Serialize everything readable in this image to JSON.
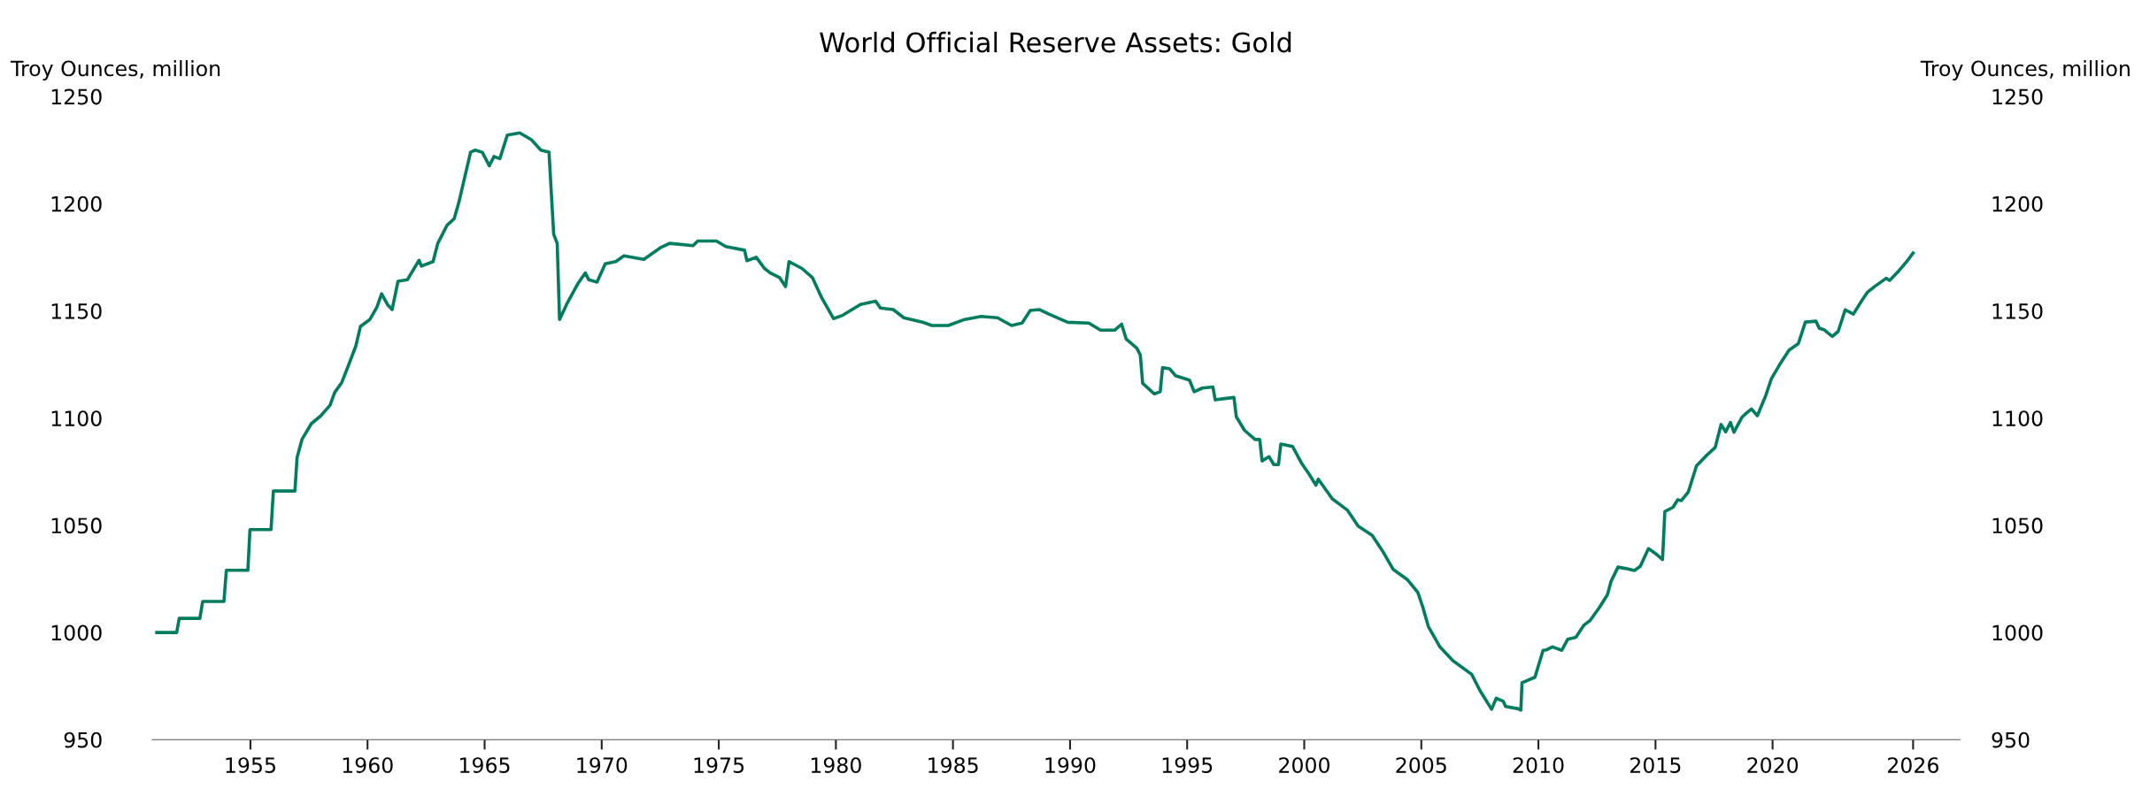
{
  "chart_data": {
    "type": "line",
    "title": "World Official Reserve Assets: Gold",
    "ylabel": "Troy Ounces, million",
    "y2label": "Troy Ounces, million",
    "xlim": [
      1950.8,
      2028
    ],
    "xticks": [
      1955,
      1960,
      1965,
      1970,
      1975,
      1980,
      1985,
      1990,
      1995,
      2000,
      2005,
      2010,
      2015,
      2020,
      2026
    ],
    "ylim": [
      950,
      1250
    ],
    "yticks": [
      950,
      1000,
      1050,
      1100,
      1150,
      1200,
      1250
    ],
    "y2lim": [
      950,
      1250
    ],
    "y2ticks": [
      950,
      1000,
      1050,
      1100,
      1150,
      1200,
      1250
    ],
    "grid": false,
    "marker": "none",
    "line_style": "solid",
    "series": [
      {
        "color": "#007d5e",
        "x": [
          1951.0,
          1951.85,
          1951.96,
          1952.84,
          1952.96,
          1953.87,
          1953.97,
          1954.89,
          1954.98,
          1955.88,
          1955.98,
          1956.9,
          1956.99,
          1957.2,
          1957.6,
          1958.0,
          1958.4,
          1958.6,
          1958.9,
          1959.2,
          1959.5,
          1959.7,
          1960.1,
          1960.4,
          1960.6,
          1960.85,
          1961.05,
          1961.3,
          1961.7,
          1962.2,
          1962.3,
          1962.8,
          1963.0,
          1963.4,
          1963.7,
          1963.9,
          1964.1,
          1964.4,
          1964.6,
          1964.9,
          1965.2,
          1965.4,
          1965.65,
          1965.97,
          1966.5,
          1967.0,
          1967.4,
          1967.75,
          1967.95,
          1968.1,
          1968.2,
          1968.5,
          1969.0,
          1969.3,
          1969.45,
          1969.8,
          1970.15,
          1970.6,
          1970.95,
          1971.8,
          1972.5,
          1972.9,
          1973.9,
          1974.1,
          1974.9,
          1975.3,
          1976.1,
          1976.2,
          1976.6,
          1976.95,
          1977.2,
          1977.6,
          1977.85,
          1978.0,
          1978.55,
          1979.0,
          1979.4,
          1979.9,
          1980.3,
          1981.05,
          1981.7,
          1981.9,
          1982.45,
          1982.9,
          1983.7,
          1984.1,
          1984.8,
          1985.5,
          1986.2,
          1986.9,
          1987.5,
          1987.95,
          1988.3,
          1988.7,
          1989.1,
          1989.9,
          1990.8,
          1991.3,
          1991.9,
          1992.2,
          1992.4,
          1992.85,
          1993.0,
          1993.1,
          1993.6,
          1993.85,
          1993.95,
          1994.25,
          1994.5,
          1995.1,
          1995.3,
          1995.65,
          1996.1,
          1996.2,
          1996.6,
          1997.0,
          1997.1,
          1997.45,
          1997.9,
          1998.1,
          1998.2,
          1998.5,
          1998.7,
          1998.9,
          1999.0,
          1999.5,
          1999.9,
          2000.2,
          2000.5,
          2000.6,
          2001.2,
          2001.85,
          2002.3,
          2002.9,
          2003.35,
          2003.8,
          2004.4,
          2004.85,
          2005.05,
          2005.3,
          2005.8,
          2006.35,
          2007.15,
          2007.5,
          2008.0,
          2008.2,
          2008.5,
          2008.6,
          2009.15,
          2009.25,
          2009.3,
          2009.85,
          2010.2,
          2010.35,
          2010.6,
          2011.0,
          2011.25,
          2011.6,
          2011.95,
          2012.2,
          2012.6,
          2012.95,
          2013.1,
          2013.4,
          2013.7,
          2014.1,
          2014.35,
          2014.7,
          2014.98,
          2015.3,
          2015.4,
          2015.75,
          2015.95,
          2016.1,
          2016.4,
          2016.75,
          2017.2,
          2017.55,
          2017.8,
          2018.0,
          2018.2,
          2018.35,
          2018.7,
          2018.9,
          2019.1,
          2019.35,
          2019.7,
          2019.95,
          2020.3,
          2020.7,
          2021.1,
          2021.4,
          2021.85,
          2022.0,
          2022.2,
          2022.55,
          2022.8,
          2023.1,
          2023.45,
          2023.8,
          2024.05,
          2024.4,
          2024.85,
          2025.0,
          2025.4,
          2025.75,
          2026.0
        ],
        "values": [
          1000,
          1000,
          1006.6,
          1006.6,
          1014.5,
          1014.5,
          1029,
          1029,
          1048,
          1048,
          1066,
          1066,
          1081.5,
          1090,
          1097.4,
          1101,
          1106,
          1112,
          1116.6,
          1125,
          1133.6,
          1142.8,
          1146,
          1151.7,
          1158,
          1153,
          1150.6,
          1163.8,
          1164.5,
          1173.6,
          1170.9,
          1173,
          1181.5,
          1190,
          1193,
          1200.6,
          1210,
          1224,
          1225,
          1224,
          1217.7,
          1222,
          1221,
          1232,
          1233,
          1229.8,
          1225,
          1224,
          1185.7,
          1181.5,
          1146,
          1153,
          1163,
          1167.7,
          1164.5,
          1163.4,
          1172,
          1173,
          1175.7,
          1174,
          1179.4,
          1181.5,
          1180.4,
          1182.6,
          1182.6,
          1180,
          1178.3,
          1173.4,
          1175,
          1169.8,
          1167.7,
          1165.5,
          1161.3,
          1173,
          1169.8,
          1165.5,
          1156,
          1146.4,
          1148,
          1153,
          1154.5,
          1151.3,
          1150.6,
          1146.8,
          1144.7,
          1143.2,
          1143.2,
          1146,
          1147.4,
          1146.8,
          1143.2,
          1144.3,
          1150.2,
          1150.6,
          1148.5,
          1144.7,
          1144.3,
          1141,
          1141,
          1143.8,
          1136.8,
          1132.6,
          1129.4,
          1116.2,
          1111.3,
          1112.3,
          1123.6,
          1123,
          1119.8,
          1117.7,
          1112.3,
          1114,
          1114.5,
          1108.5,
          1109.1,
          1109.6,
          1100.6,
          1094.3,
          1090,
          1090,
          1080,
          1082,
          1078.3,
          1078.3,
          1087.9,
          1086.8,
          1078.7,
          1074,
          1068.7,
          1071.5,
          1062.3,
          1057,
          1049.6,
          1045.3,
          1037.9,
          1029.4,
          1024.7,
          1018.7,
          1012.3,
          1002.8,
          993.2,
          986.8,
          980.5,
          973,
          964.2,
          969.3,
          967.9,
          965.5,
          964.4,
          963.8,
          976.6,
          979.1,
          991.7,
          991.9,
          993.3,
          991.7,
          996.8,
          997.8,
          1003.5,
          1005.5,
          1011.6,
          1017.7,
          1023.8,
          1030.5,
          1029.9,
          1028.9,
          1030.9,
          1039.1,
          1037,
          1034,
          1056.4,
          1058.4,
          1061.9,
          1061.5,
          1065.5,
          1077.7,
          1082.8,
          1086.3,
          1097,
          1093.6,
          1098,
          1093.4,
          1100.5,
          1102.5,
          1104.2,
          1101.1,
          1110.3,
          1118.4,
          1124.9,
          1131.6,
          1134.7,
          1144.8,
          1145.2,
          1141.8,
          1141.2,
          1138.1,
          1140.4,
          1150.5,
          1148.5,
          1154.6,
          1158.7,
          1161.7,
          1165.2,
          1164.2,
          1168.8,
          1173.3,
          1177
        ]
      }
    ]
  }
}
